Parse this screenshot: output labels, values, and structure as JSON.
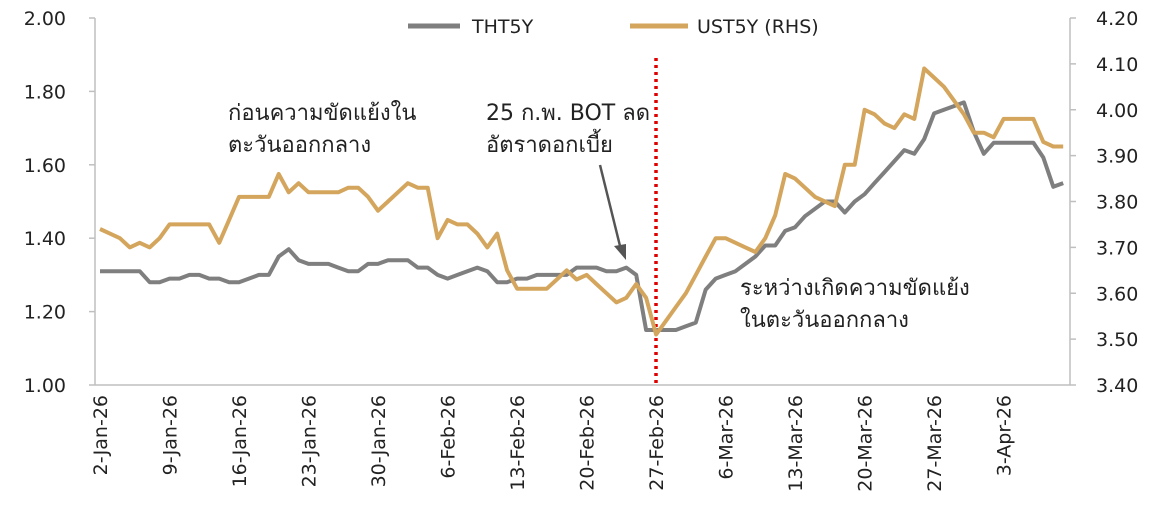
{
  "chart_data": {
    "type": "line",
    "categories": [
      "2-Jan-26",
      null,
      null,
      null,
      null,
      null,
      null,
      "9-Jan-26",
      null,
      null,
      null,
      null,
      null,
      null,
      "16-Jan-26",
      null,
      null,
      null,
      null,
      null,
      null,
      "23-Jan-26",
      null,
      null,
      null,
      null,
      null,
      null,
      "30-Jan-26",
      null,
      null,
      null,
      null,
      null,
      null,
      "6-Feb-26",
      null,
      null,
      null,
      null,
      null,
      null,
      "13-Feb-26",
      null,
      null,
      null,
      null,
      null,
      null,
      "20-Feb-26",
      null,
      null,
      null,
      null,
      null,
      null,
      "27-Feb-26",
      null,
      null,
      null,
      null,
      null,
      null,
      "6-Mar-26",
      null,
      null,
      null,
      null,
      null,
      null,
      "13-Mar-26",
      null,
      null,
      null,
      null,
      null,
      null,
      "20-Mar-26",
      null,
      null,
      null,
      null,
      null,
      null,
      "27-Mar-26",
      null,
      null,
      null,
      null,
      null,
      null,
      "3-Apr-26",
      null,
      null,
      null,
      null,
      null,
      null
    ],
    "series": [
      {
        "name": "THT5Y",
        "color": "#7f7f7f",
        "values": [
          1.31,
          1.31,
          1.31,
          1.31,
          1.31,
          1.28,
          1.28,
          1.29,
          1.29,
          1.3,
          1.3,
          1.29,
          1.29,
          1.28,
          1.28,
          1.29,
          1.3,
          1.3,
          1.35,
          1.37,
          1.34,
          1.33,
          1.33,
          1.33,
          1.32,
          1.31,
          1.31,
          1.33,
          1.33,
          1.34,
          1.34,
          1.34,
          1.32,
          1.32,
          1.3,
          1.29,
          1.3,
          1.31,
          1.32,
          1.31,
          1.28,
          1.28,
          1.29,
          1.29,
          1.3,
          1.3,
          1.3,
          1.3,
          1.32,
          1.32,
          1.32,
          1.31,
          1.31,
          1.32,
          1.3,
          1.15,
          1.15,
          1.15,
          1.15,
          1.16,
          1.17,
          1.26,
          1.29,
          1.3,
          1.31,
          1.33,
          1.35,
          1.38,
          1.38,
          1.42,
          1.43,
          1.46,
          1.48,
          1.5,
          1.5,
          1.47,
          1.5,
          1.52,
          1.55,
          1.58,
          1.61,
          1.64,
          1.63,
          1.67,
          1.74,
          1.75,
          1.76,
          1.77,
          1.69,
          1.63,
          1.66,
          1.66,
          1.66,
          1.66,
          1.66,
          1.62,
          1.54,
          1.55
        ]
      },
      {
        "name": "UST5Y (RHS)",
        "color": "#d4a55c",
        "axis": "y2",
        "values": [
          3.74,
          3.73,
          3.72,
          3.7,
          3.71,
          3.7,
          3.72,
          3.75,
          3.75,
          3.75,
          3.75,
          3.75,
          3.71,
          3.76,
          3.81,
          3.81,
          3.81,
          3.81,
          3.86,
          3.82,
          3.84,
          3.82,
          3.82,
          3.82,
          3.82,
          3.83,
          3.83,
          3.81,
          3.78,
          3.8,
          3.82,
          3.84,
          3.83,
          3.83,
          3.72,
          3.76,
          3.75,
          3.75,
          3.73,
          3.7,
          3.73,
          3.65,
          3.61,
          3.61,
          3.61,
          3.61,
          3.63,
          3.65,
          3.63,
          3.64,
          3.62,
          3.6,
          3.58,
          3.59,
          3.62,
          3.59,
          3.51,
          3.54,
          3.57,
          3.6,
          3.64,
          3.68,
          3.72,
          3.72,
          3.71,
          3.7,
          3.69,
          3.72,
          3.77,
          3.86,
          3.85,
          3.83,
          3.81,
          3.8,
          3.79,
          3.88,
          3.88,
          4.0,
          3.99,
          3.97,
          3.96,
          3.99,
          3.98,
          4.09,
          4.07,
          4.05,
          4.02,
          3.99,
          3.95,
          3.95,
          3.94,
          3.98,
          3.98,
          3.98,
          3.98,
          3.93,
          3.92,
          3.92
        ]
      }
    ],
    "ylim": [
      1.0,
      2.0
    ],
    "yticks": [
      {
        "value": 1.0,
        "label": "1.00"
      },
      {
        "value": 1.2,
        "label": "1.20"
      },
      {
        "value": 1.4,
        "label": "1.40"
      },
      {
        "value": 1.6,
        "label": "1.60"
      },
      {
        "value": 1.8,
        "label": "1.80"
      },
      {
        "value": 2.0,
        "label": "2.00"
      }
    ],
    "y2lim": [
      3.4,
      4.2
    ],
    "y2ticks": [
      {
        "value": 3.4,
        "label": "3.40"
      },
      {
        "value": 3.5,
        "label": "3.50"
      },
      {
        "value": 3.6,
        "label": "3.60"
      },
      {
        "value": 3.7,
        "label": "3.70"
      },
      {
        "value": 3.8,
        "label": "3.80"
      },
      {
        "value": 3.9,
        "label": "3.90"
      },
      {
        "value": 4.0,
        "label": "4.00"
      },
      {
        "value": 4.1,
        "label": "4.10"
      },
      {
        "value": 4.2,
        "label": "4.20"
      }
    ],
    "grid": false,
    "legend": "top",
    "annotations": [
      {
        "lines": [
          "ก่อนความขัดแย้งใน",
          "ตะวันออกกลาง"
        ]
      },
      {
        "lines": [
          "25 ก.พ. BOT ลด",
          "อัตราดอกเบี้ย"
        ]
      },
      {
        "lines": [
          "ระหว่างเกิดความขัดแย้ง",
          "ในตะวันออกกลาง"
        ]
      }
    ]
  }
}
